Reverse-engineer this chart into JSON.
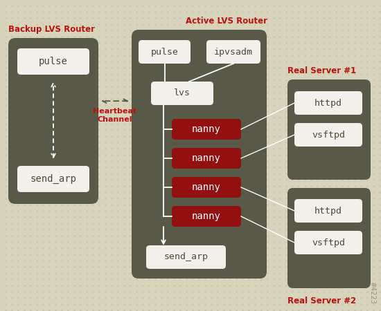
{
  "bg_color": "#d8d3bb",
  "panel_color": "#595948",
  "box_white": "#f2f0eb",
  "box_red": "#921010",
  "text_dark": "#4a4a38",
  "text_white": "#ffffff",
  "title_color": "#bb1111",
  "backup_label": "Backup LVS Router",
  "active_label": "Active LVS Router",
  "rs1_label": "Real Server #1",
  "rs2_label": "Real Server #2",
  "heartbeat_label": "Heartbeat\nChannel",
  "watermark": "#4223",
  "backup_panel": [
    12,
    55,
    130,
    240
  ],
  "active_panel": [
    190,
    43,
    195,
    360
  ],
  "rs1_panel": [
    415,
    115,
    120,
    145
  ],
  "rs2_panel": [
    415,
    272,
    120,
    145
  ],
  "bp_pulse": [
    25,
    70,
    104,
    38
  ],
  "bp_send_arp": [
    25,
    240,
    104,
    38
  ],
  "ap_pulse": [
    200,
    58,
    75,
    34
  ],
  "ap_ipvsadm": [
    298,
    58,
    78,
    34
  ],
  "ap_lvs": [
    218,
    118,
    90,
    34
  ],
  "ap_nanny1": [
    248,
    172,
    100,
    30
  ],
  "ap_nanny2": [
    248,
    214,
    100,
    30
  ],
  "ap_nanny3": [
    248,
    256,
    100,
    30
  ],
  "ap_nanny4": [
    248,
    298,
    100,
    30
  ],
  "ap_send_arp": [
    211,
    355,
    115,
    34
  ],
  "rs1_httpd": [
    425,
    132,
    98,
    34
  ],
  "rs1_vsftpd": [
    425,
    178,
    98,
    34
  ],
  "rs2_httpd": [
    425,
    288,
    98,
    34
  ],
  "rs2_vsftpd": [
    425,
    334,
    98,
    34
  ]
}
